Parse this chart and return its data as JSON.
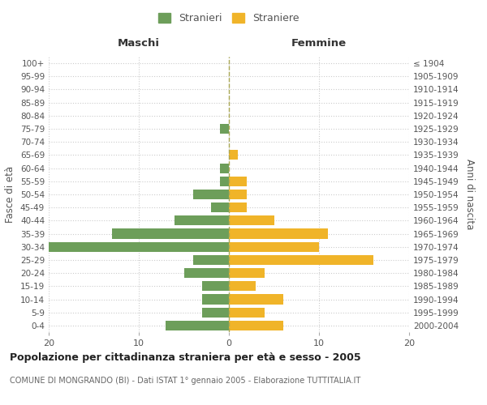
{
  "age_groups": [
    "0-4",
    "5-9",
    "10-14",
    "15-19",
    "20-24",
    "25-29",
    "30-34",
    "35-39",
    "40-44",
    "45-49",
    "50-54",
    "55-59",
    "60-64",
    "65-69",
    "70-74",
    "75-79",
    "80-84",
    "85-89",
    "90-94",
    "95-99",
    "100+"
  ],
  "birth_years": [
    "2000-2004",
    "1995-1999",
    "1990-1994",
    "1985-1989",
    "1980-1984",
    "1975-1979",
    "1970-1974",
    "1965-1969",
    "1960-1964",
    "1955-1959",
    "1950-1954",
    "1945-1949",
    "1940-1944",
    "1935-1939",
    "1930-1934",
    "1925-1929",
    "1920-1924",
    "1915-1919",
    "1910-1914",
    "1905-1909",
    "≤ 1904"
  ],
  "maschi": [
    7,
    3,
    3,
    3,
    5,
    4,
    20,
    13,
    6,
    2,
    4,
    1,
    1,
    0,
    0,
    1,
    0,
    0,
    0,
    0,
    0
  ],
  "femmine": [
    6,
    4,
    6,
    3,
    4,
    16,
    10,
    11,
    5,
    2,
    2,
    2,
    0,
    1,
    0,
    0,
    0,
    0,
    0,
    0,
    0
  ],
  "color_maschi": "#6d9e5a",
  "color_femmine": "#f0b429",
  "title": "Popolazione per cittadinanza straniera per età e sesso - 2005",
  "subtitle": "COMUNE DI MONGRANDO (BI) - Dati ISTAT 1° gennaio 2005 - Elaborazione TUTTITALIA.IT",
  "xlabel_left": "Maschi",
  "xlabel_right": "Femmine",
  "ylabel_left": "Fasce di età",
  "ylabel_right": "Anni di nascita",
  "legend_maschi": "Stranieri",
  "legend_femmine": "Straniere",
  "xlim": 20,
  "background_color": "#ffffff",
  "grid_color": "#cccccc"
}
